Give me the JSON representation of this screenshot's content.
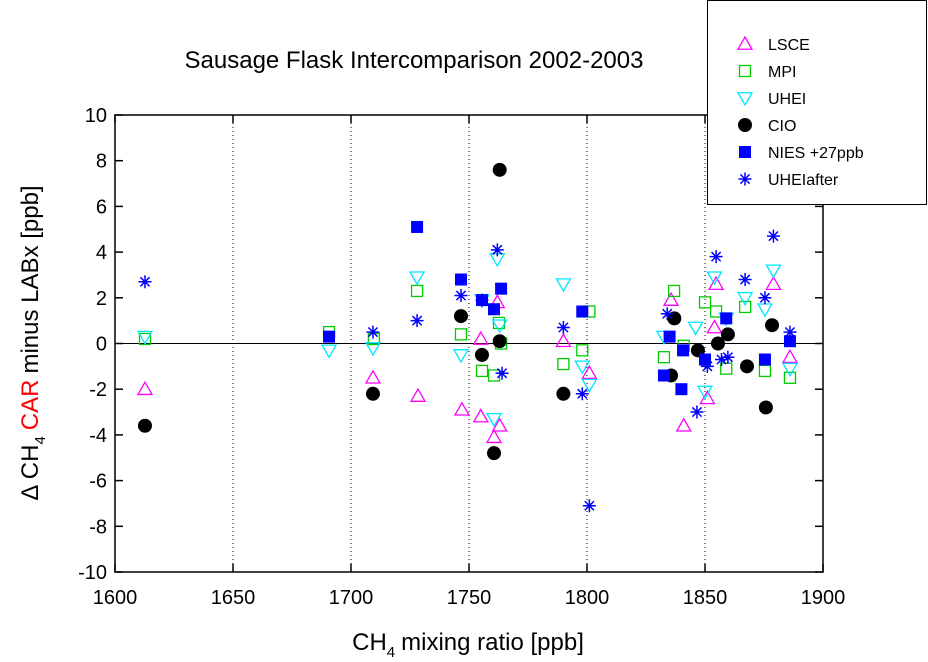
{
  "chart_data": {
    "type": "scatter",
    "title": "Sausage Flask Intercomparison 2002-2003",
    "x_label": {
      "main": "CH",
      "sub": "4",
      "rest": "mixing ratio [ppb]"
    },
    "y_label": {
      "main": "Δ CH",
      "sub": "4",
      "highlight": "CAR",
      "highlight_color": "#ff0000",
      "rest": "minus LABx [ppb]"
    },
    "xlim": [
      1600,
      1900
    ],
    "xticks": [
      1600,
      1650,
      1700,
      1750,
      1800,
      1850,
      1900
    ],
    "ylim": [
      -10,
      10
    ],
    "yticks": [
      -10,
      -8,
      -6,
      -4,
      -2,
      0,
      2,
      4,
      6,
      8,
      10
    ],
    "grid": "x-dotted",
    "zero_line": true,
    "legend": "top-right",
    "series": [
      {
        "name": "LSCE",
        "color": "#ff00ff",
        "marker": "triangle-up-open",
        "x": [
          1612.7,
          1709.3,
          1728.4,
          1747,
          1755,
          1755,
          1760.6,
          1763,
          1762,
          1790,
          1801,
          1841,
          1835.6,
          1851,
          1854,
          1854.7,
          1879,
          1886
        ],
        "values": [
          -2.0,
          -1.5,
          -2.3,
          -2.9,
          -3.2,
          0.2,
          -4.1,
          -3.6,
          1.8,
          0.1,
          -1.3,
          -3.6,
          1.9,
          -2.4,
          0.7,
          2.6,
          2.6,
          -0.6
        ]
      },
      {
        "name": "MPI",
        "color": "#00cc00",
        "marker": "square-open",
        "x": [
          1612.7,
          1690.7,
          1709.7,
          1728,
          1746.6,
          1755.5,
          1760.6,
          1762.7,
          1763.6,
          1790,
          1798,
          1801,
          1832.6,
          1836.9,
          1841,
          1850,
          1854.7,
          1859,
          1867,
          1875.4,
          1886
        ],
        "values": [
          0.2,
          0.5,
          0.2,
          2.3,
          0.4,
          -1.2,
          -1.4,
          0.9,
          0,
          -0.9,
          -0.3,
          1.4,
          -0.6,
          2.3,
          -0.1,
          1.8,
          1.4,
          -1.1,
          1.6,
          -1.2,
          -1.5
        ]
      },
      {
        "name": "UHEI",
        "color": "#00e5ff",
        "marker": "triangle-down-open",
        "x": [
          1612.7,
          1690.7,
          1709.3,
          1728,
          1746.6,
          1755.5,
          1760.6,
          1762,
          1763,
          1790,
          1798,
          1801,
          1832.6,
          1846,
          1850,
          1854,
          1859,
          1867,
          1875.4,
          1879,
          1886
        ],
        "values": [
          0.3,
          -0.3,
          -0.2,
          2.9,
          -0.5,
          1.9,
          -3.3,
          3.7,
          0.8,
          2.6,
          -1.0,
          -1.8,
          0.3,
          0.7,
          -2.1,
          2.9,
          1.1,
          2.0,
          1.5,
          3.2,
          -1.1
        ]
      },
      {
        "name": "CIO",
        "color": "#000000",
        "marker": "circle",
        "x": [
          1612.7,
          1709.3,
          1746.6,
          1755.5,
          1760.6,
          1763,
          1763,
          1790,
          1837,
          1835.6,
          1847,
          1855.5,
          1859.7,
          1867.8,
          1875.8,
          1878.4
        ],
        "values": [
          -3.6,
          -2.2,
          1.2,
          -0.5,
          -4.8,
          7.6,
          0.1,
          -2.2,
          1.1,
          -1.4,
          -0.3,
          0,
          0.4,
          -1.0,
          -2.8,
          0.8
        ]
      },
      {
        "name": "NIES +27ppb",
        "color": "#0000ff",
        "marker": "square",
        "x": [
          1690.7,
          1728,
          1746.6,
          1755.5,
          1760.6,
          1763.6,
          1798,
          1832.6,
          1835,
          1840,
          1840.7,
          1850,
          1859,
          1875.4,
          1886
        ],
        "values": [
          0.3,
          5.1,
          2.8,
          1.9,
          1.5,
          2.4,
          1.4,
          -1.4,
          0.3,
          -2.0,
          -0.3,
          -0.7,
          1.1,
          -0.7,
          0.1
        ]
      },
      {
        "name": "UHEIafter",
        "color": "#0000ff",
        "marker": "asterisk",
        "x": [
          1612.7,
          1709.3,
          1728,
          1746.6,
          1755.5,
          1762,
          1764,
          1790,
          1798,
          1801,
          1834,
          1846.6,
          1851,
          1854.7,
          1857,
          1859.7,
          1867,
          1875.4,
          1879,
          1886
        ],
        "values": [
          2.7,
          0.5,
          1.0,
          2.1,
          1.9,
          4.1,
          -1.3,
          0.7,
          -2.2,
          -7.1,
          1.3,
          -3.0,
          -1.0,
          3.8,
          -0.7,
          -0.6,
          2.8,
          2.0,
          4.7,
          0.5
        ]
      }
    ]
  }
}
